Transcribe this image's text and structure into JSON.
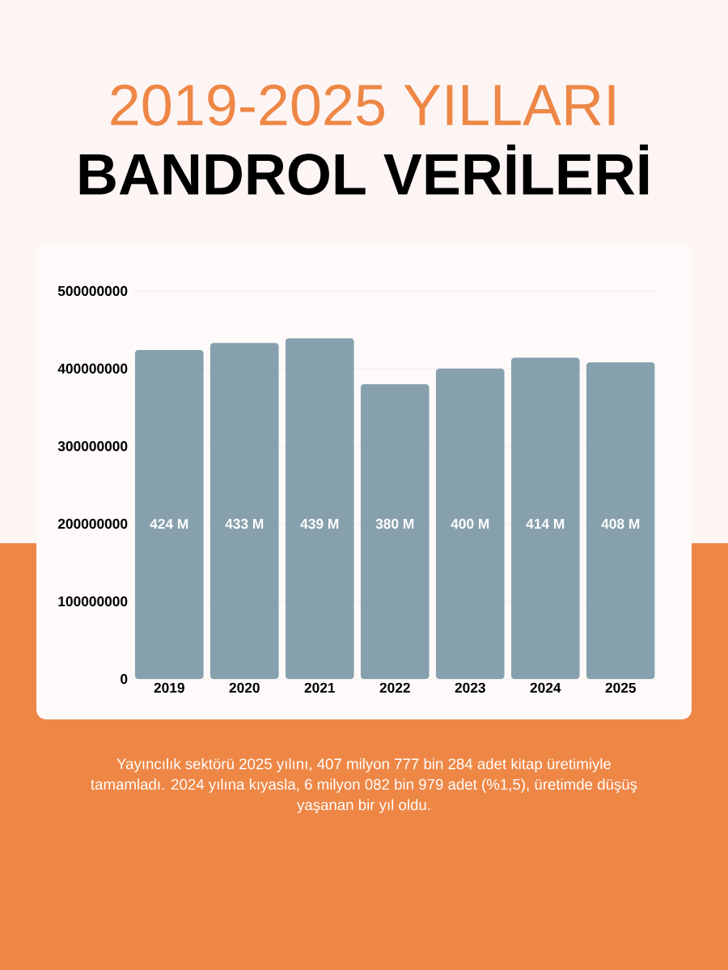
{
  "chart_data": {
    "type": "bar",
    "title": "2019-2025 YILLARI",
    "subtitle": "BANDROL VERİLERİ",
    "categories": [
      "2019",
      "2020",
      "2021",
      "2022",
      "2023",
      "2024",
      "2025"
    ],
    "values": [
      424000000,
      433000000,
      439000000,
      380000000,
      400000000,
      414000000,
      408000000
    ],
    "value_labels": [
      "424 M",
      "433 M",
      "439 M",
      "380 M",
      "400 M",
      "414 M",
      "408 M"
    ],
    "color": "#87a0ad",
    "ylim": [
      0,
      500000000
    ],
    "yticks": [
      0,
      100000000,
      200000000,
      300000000,
      400000000,
      500000000
    ],
    "grid": "y",
    "annotations": [
      "Yayıncılık sektörü 2025 yılını, 407 milyon 777 bin 284 adet kitap üretimiyle tamamladı. 2024 yılına kıyasla, 6 milyon 082 bin 979 adet (%1,5), üretimde düşüş yaşanan bir yıl oldu."
    ]
  }
}
